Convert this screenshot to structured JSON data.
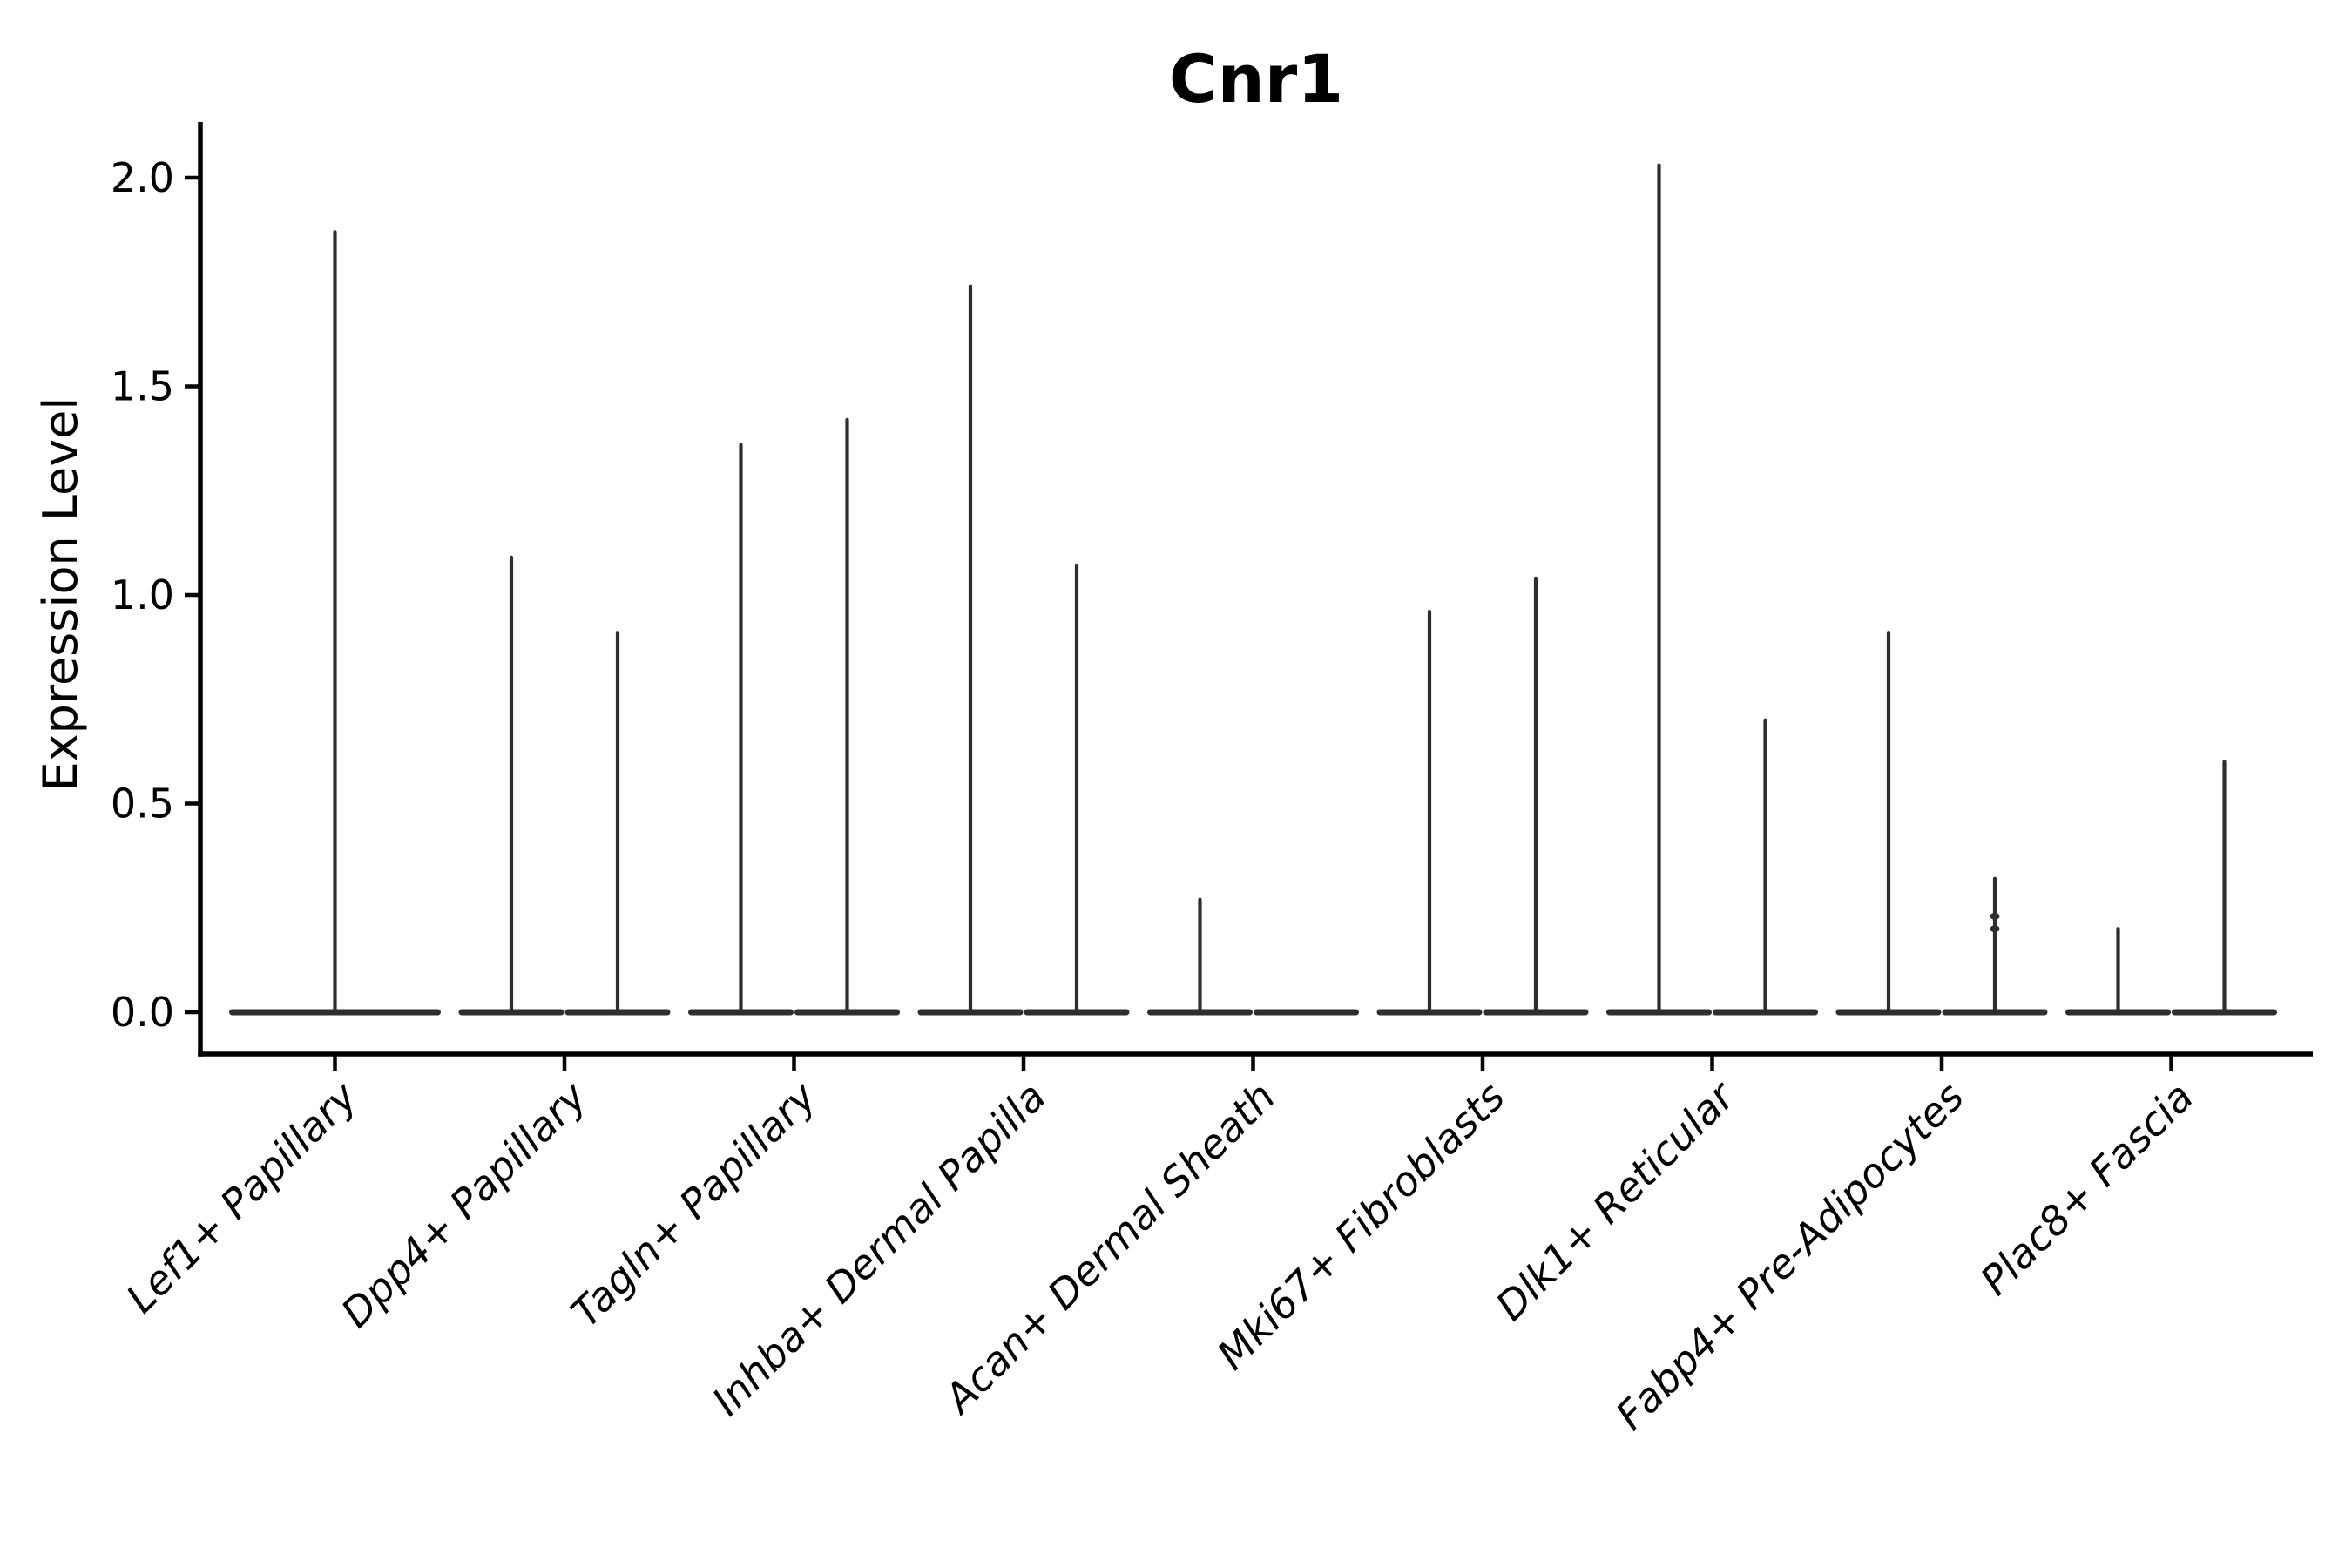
{
  "title": "Cnr1",
  "y_axis": {
    "label": "Expression Level",
    "tick_labels": [
      "0.0",
      "0.5",
      "1.0",
      "1.5",
      "2.0"
    ]
  },
  "chart_data": {
    "type": "violin",
    "title": "Cnr1",
    "xlabel": "",
    "ylabel": "Expression Level",
    "ylim": [
      -0.1,
      2.13
    ],
    "yticks": [
      0.0,
      0.5,
      1.0,
      1.5,
      2.0
    ],
    "grid": false,
    "legend": "none",
    "background_color": "#ffffff",
    "violin_color": "#2e2e2e",
    "axis_color": "#000000",
    "categories": [
      "Lef1+ Papillary",
      "Dpp4+ Papillary",
      "Tagln+ Papillary",
      "Inhba+ Dermal Papilla",
      "Acan+ Dermal Sheath",
      "Mki67+ Fibroblasts",
      "Dlk1+ Reticular",
      "Fabp4+ Pre-Adipocytes",
      "Plac8+ Fascia"
    ],
    "description": "Violin plot of Cnr1 expression; most violins collapse to a flat bar at 0 with a thin spike up to the maximum expression value. Most categories contain two half-width violins (split), Lef1+ Papillary has a single full-width violin, and the right violin of Acan+ Dermal Sheath is flat at 0.",
    "groups": [
      {
        "category": "Lef1+ Papillary",
        "violins": [
          {
            "position": "full",
            "max": 1.87
          }
        ]
      },
      {
        "category": "Dpp4+ Papillary",
        "violins": [
          {
            "position": "left",
            "max": 1.09
          },
          {
            "position": "right",
            "max": 0.91
          }
        ]
      },
      {
        "category": "Tagln+ Papillary",
        "violins": [
          {
            "position": "left",
            "max": 1.36
          },
          {
            "position": "right",
            "max": 1.42
          }
        ]
      },
      {
        "category": "Inhba+ Dermal Papilla",
        "violins": [
          {
            "position": "left",
            "max": 1.74
          },
          {
            "position": "right",
            "max": 1.07
          }
        ]
      },
      {
        "category": "Acan+ Dermal Sheath",
        "violins": [
          {
            "position": "left",
            "max": 0.27
          },
          {
            "position": "right",
            "max": 0.0
          }
        ]
      },
      {
        "category": "Mki67+ Fibroblasts",
        "violins": [
          {
            "position": "left",
            "max": 0.96
          },
          {
            "position": "right",
            "max": 1.04
          }
        ]
      },
      {
        "category": "Dlk1+ Reticular",
        "violins": [
          {
            "position": "left",
            "max": 2.03
          },
          {
            "position": "right",
            "max": 0.7
          }
        ]
      },
      {
        "category": "Fabp4+ Pre-Adipocytes",
        "violins": [
          {
            "position": "left",
            "max": 0.91
          },
          {
            "position": "right",
            "max": 0.32,
            "bumps": [
              0.23,
              0.2
            ]
          }
        ]
      },
      {
        "category": "Plac8+ Fascia",
        "violins": [
          {
            "position": "left",
            "max": 0.2
          },
          {
            "position": "right",
            "max": 0.6
          }
        ]
      }
    ]
  }
}
